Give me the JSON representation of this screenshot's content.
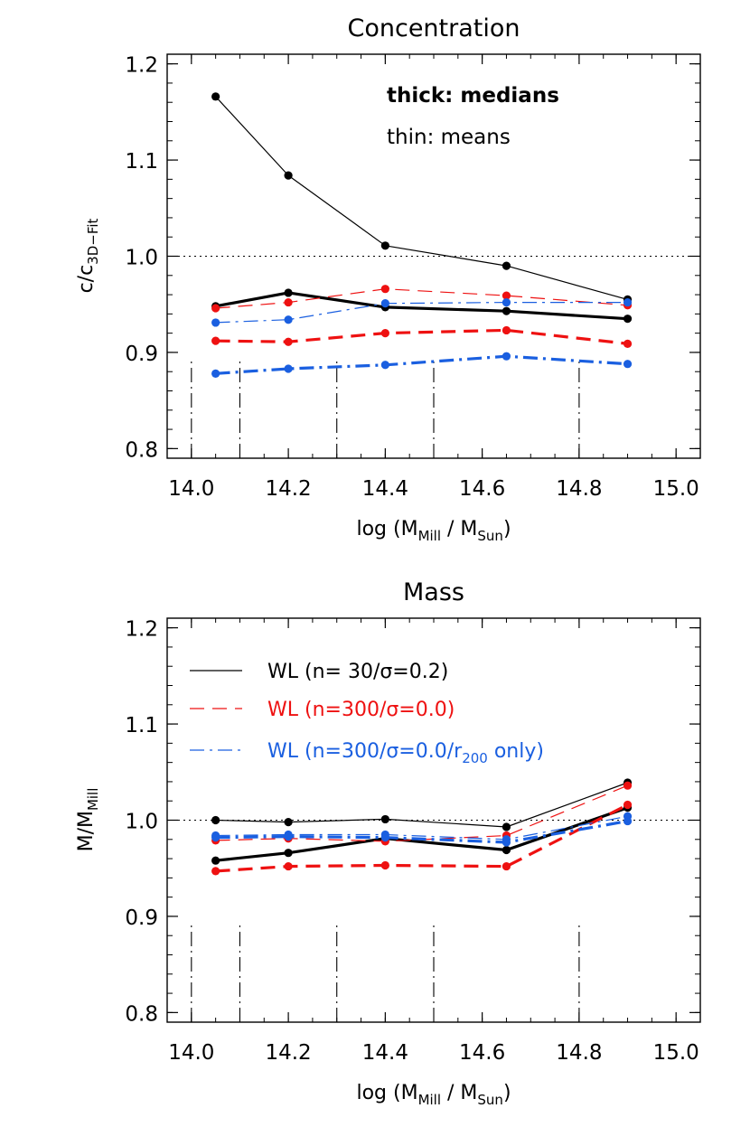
{
  "colors": {
    "black": "#000000",
    "red": "#ee1111",
    "blue": "#1a5fe0"
  },
  "chart_data": [
    {
      "type": "line",
      "title": "Concentration",
      "xlabel": "log (M_Mill / M_Sun)",
      "xlabel_parts": {
        "pre": "log (M",
        "sub1": "Mill",
        "mid": " / M",
        "sub2": "Sun",
        "post": ")"
      },
      "ylabel": "c/c_3D-Fit",
      "ylabel_parts": {
        "main": "c/c",
        "sub": "3D−Fit"
      },
      "xlim": [
        13.95,
        15.05
      ],
      "ylim": [
        0.79,
        1.21
      ],
      "xticks": [
        "14.0",
        "14.2",
        "14.4",
        "14.6",
        "14.8",
        "15.0"
      ],
      "yticks": [
        "0.8",
        "0.9",
        "1.0",
        "1.1",
        "1.2"
      ],
      "reference_line": 1.0,
      "bin_edges": [
        14.0,
        14.1,
        14.3,
        14.5,
        14.8
      ],
      "bin_marker_top": 0.893,
      "annotations": [
        "thick: medians",
        "thin: means"
      ],
      "x": [
        14.05,
        14.2,
        14.4,
        14.65,
        14.9
      ],
      "series": [
        {
          "color": "black",
          "dash": "solid",
          "stat": "mean",
          "values": [
            1.166,
            1.084,
            1.011,
            0.99,
            0.955
          ]
        },
        {
          "color": "black",
          "dash": "solid",
          "stat": "median",
          "values": [
            0.948,
            0.962,
            0.947,
            0.943,
            0.935
          ]
        },
        {
          "color": "red",
          "dash": "dashed",
          "stat": "mean",
          "values": [
            0.946,
            0.952,
            0.966,
            0.959,
            0.949
          ]
        },
        {
          "color": "red",
          "dash": "dashed",
          "stat": "median",
          "values": [
            0.912,
            0.911,
            0.92,
            0.923,
            0.909
          ]
        },
        {
          "color": "blue",
          "dash": "dashdot",
          "stat": "mean",
          "values": [
            0.931,
            0.934,
            0.951,
            0.952,
            0.952
          ]
        },
        {
          "color": "blue",
          "dash": "dashdot",
          "stat": "median",
          "values": [
            0.878,
            0.883,
            0.887,
            0.896,
            0.888
          ]
        }
      ]
    },
    {
      "type": "line",
      "title": "Mass",
      "xlabel": "log (M_Mill / M_Sun)",
      "xlabel_parts": {
        "pre": "log (M",
        "sub1": "Mill",
        "mid": " / M",
        "sub2": "Sun",
        "post": ")"
      },
      "ylabel": "M/M_Mill",
      "ylabel_parts": {
        "main": "M/M",
        "sub": "Mill"
      },
      "xlim": [
        13.95,
        15.05
      ],
      "ylim": [
        0.79,
        1.21
      ],
      "xticks": [
        "14.0",
        "14.2",
        "14.4",
        "14.6",
        "14.8",
        "15.0"
      ],
      "yticks": [
        "0.8",
        "0.9",
        "1.0",
        "1.1",
        "1.2"
      ],
      "reference_line": 1.0,
      "bin_edges": [
        14.0,
        14.1,
        14.3,
        14.5,
        14.8
      ],
      "bin_marker_top": 0.893,
      "legend": [
        {
          "color": "black",
          "dash": "solid",
          "text": "WL (n= 30/σ=0.2)"
        },
        {
          "color": "red",
          "dash": "dashed",
          "text": "WL (n=300/σ=0.0)"
        },
        {
          "color": "blue",
          "dash": "dashdot",
          "text": "WL (n=300/σ=0.0/r",
          "sub": "200",
          "tail": " only)"
        }
      ],
      "x": [
        14.05,
        14.2,
        14.4,
        14.65,
        14.9
      ],
      "series": [
        {
          "color": "black",
          "dash": "solid",
          "stat": "mean",
          "values": [
            1.0,
            0.998,
            1.001,
            0.993,
            1.039
          ]
        },
        {
          "color": "black",
          "dash": "solid",
          "stat": "median",
          "values": [
            0.958,
            0.966,
            0.981,
            0.969,
            1.013
          ]
        },
        {
          "color": "red",
          "dash": "dashed",
          "stat": "mean",
          "values": [
            0.979,
            0.981,
            0.978,
            0.984,
            1.036
          ]
        },
        {
          "color": "red",
          "dash": "dashed",
          "stat": "median",
          "values": [
            0.947,
            0.952,
            0.953,
            0.952,
            1.016
          ]
        },
        {
          "color": "blue",
          "dash": "dashdot",
          "stat": "mean",
          "values": [
            0.984,
            0.985,
            0.985,
            0.98,
            1.004
          ]
        },
        {
          "color": "blue",
          "dash": "dashdot",
          "stat": "median",
          "values": [
            0.982,
            0.983,
            0.982,
            0.977,
            0.999
          ]
        }
      ]
    }
  ]
}
